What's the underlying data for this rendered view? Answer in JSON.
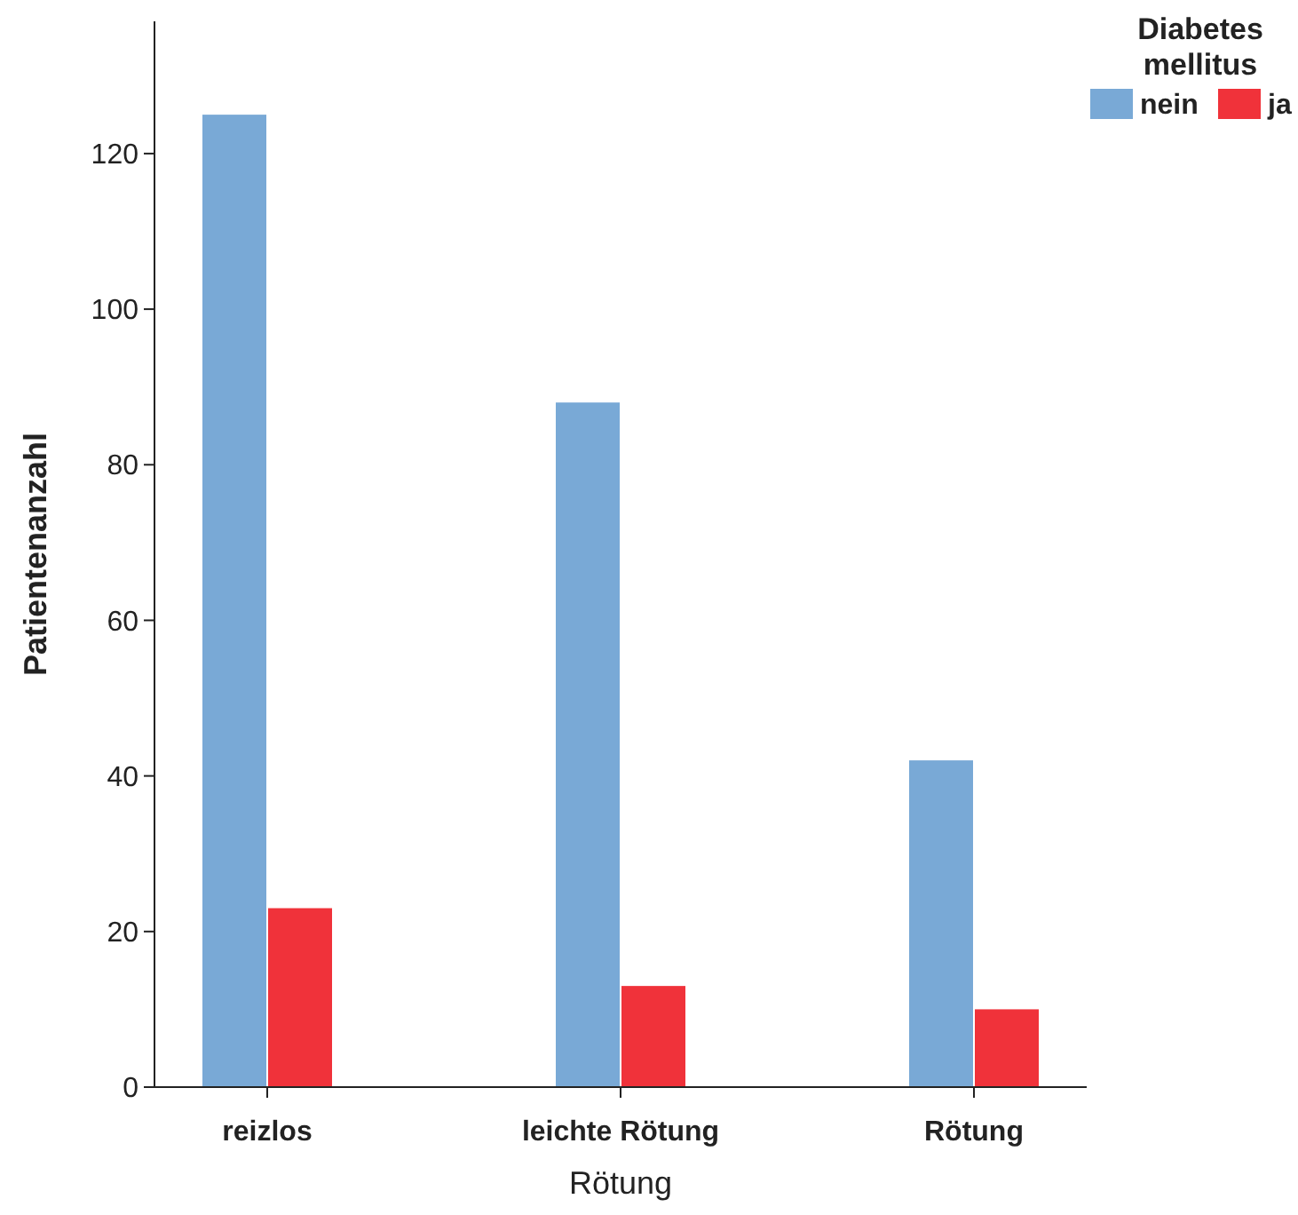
{
  "chart_data": {
    "type": "bar",
    "xlabel": "Rötung",
    "ylabel": "Patientenanzahl",
    "legend_title": "Diabetes mellitus",
    "categories": [
      "reizlos",
      "leichte Rötung",
      "Rötung"
    ],
    "series": [
      {
        "name": "nein",
        "color": "#79a9d6",
        "values": [
          125,
          88,
          42
        ]
      },
      {
        "name": "ja",
        "color": "#f0323a",
        "values": [
          23,
          13,
          10
        ]
      }
    ],
    "ylim": [
      0,
      137
    ],
    "yticks": [
      0,
      20,
      40,
      60,
      80,
      100,
      120
    ],
    "grid": false,
    "legend": "top right"
  }
}
